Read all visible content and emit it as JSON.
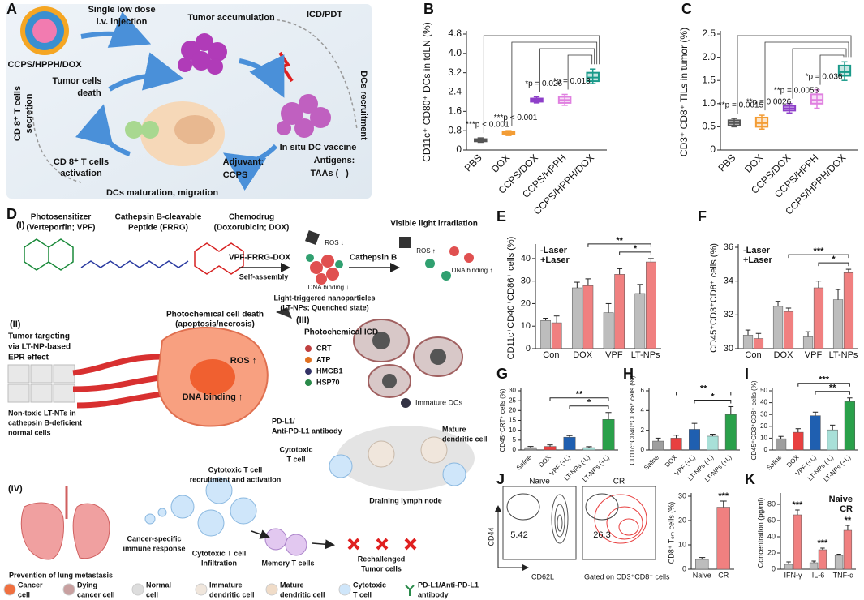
{
  "panel_a": {
    "label": "A",
    "texts": [
      "Single low dose",
      "i.v. injection",
      "Tumor accumulation",
      "ICD/PDT",
      "CCPS/HPPH/DOX",
      "Tumor cells",
      "death",
      "DCs recruitment",
      "CD 8⁺ T cells",
      "secretion",
      "In situ DC vaccine",
      "Antigens:",
      "TAAs (",
      ")",
      "Adjuvant:",
      "CCPS",
      "DCs maturation, migration",
      "CD 8⁺ T cells",
      "activation"
    ]
  },
  "panel_d": {
    "label": "D",
    "texts": [
      "(I)",
      "Photosensitizer",
      "(Verteporfin; VPF)",
      "Cathepsin B-cleavable",
      "Peptide (FRRG)",
      "Chemodrug",
      "(Doxorubicin; DOX)",
      "VPF-FRRG-DOX",
      "Self-assembly",
      "Light-triggered nanoparticles",
      "(LT-NPs; Quenched state)",
      "Cathepsin B",
      "Visible light irradiation",
      "ROS ↓",
      "DNA binding ↓",
      "ROS ↑",
      "DNA binding ↑",
      "(II)",
      "Tumor targeting",
      "via LT-NP-based",
      "EPR effect",
      "Non-toxic LT-NTs in",
      "cathepsin B-deficient",
      "normal cells",
      "Photochemical cell death",
      "(apoptosis/necrosis)",
      "ROS ↑",
      "DNA binding ↑",
      "(III)",
      "Photochemical ICD",
      "CRT",
      "ATP",
      "HMGB1",
      "HSP70",
      "Immature DCs",
      "PD-L1/",
      "Anti-PD-L1 antibody",
      "Cytotoxic",
      "T cell",
      "Mature",
      "dendritic cell",
      "(IV)",
      "Cytotoxic T cell",
      "recruitment and activation",
      "Draining lymph node",
      "Cancer-specific",
      "immune response",
      "Cytotoxic T cell",
      "Infiltration",
      "Memory T cells",
      "Rechallenged",
      "Tumor cells",
      "Prevention of lung metastasis",
      "Cancer",
      "cell",
      "Dying",
      "cancer cell",
      "Normal",
      "cell",
      "Immature",
      "dendritic cell",
      "Mature",
      "dendritic cell",
      "Cytotoxic",
      "T cell",
      "PD-L1/Anti-PD-L1",
      "antibody"
    ]
  },
  "flow_j": {
    "panels": [
      {
        "title": "Naive",
        "value": 5.42
      },
      {
        "title": "CR",
        "value": 26.3
      }
    ],
    "y_label": "CD44",
    "x_label": "CD62L",
    "caption": "Gated on CD3⁺CD8⁺ cells"
  },
  "chart_data": [
    {
      "type": "box",
      "label": "B",
      "ylabel": "CD11c⁺ CD80⁺ DCs in tdLN (%)",
      "categories": [
        "PBS",
        "DOX",
        "CCPS/DOX",
        "CCPS/HPPH",
        "CCPS/HPPH/DOX"
      ],
      "colors": [
        "#555555",
        "#f39c34",
        "#8e3fc9",
        "#e080e0",
        "#1a9a8a"
      ],
      "boxes": [
        {
          "min": 0.32,
          "q1": 0.36,
          "median": 0.4,
          "q3": 0.45,
          "max": 0.5
        },
        {
          "min": 0.6,
          "q1": 0.65,
          "median": 0.7,
          "q3": 0.76,
          "max": 0.8
        },
        {
          "min": 1.95,
          "q1": 2.0,
          "median": 2.07,
          "q3": 2.13,
          "max": 2.2
        },
        {
          "min": 1.85,
          "q1": 1.95,
          "median": 2.07,
          "q3": 2.2,
          "max": 2.3
        },
        {
          "min": 2.75,
          "q1": 2.85,
          "median": 3.0,
          "q3": 3.2,
          "max": 3.35
        }
      ],
      "ylim": [
        0,
        4.8
      ],
      "yticks": [
        0,
        0.8,
        1.6,
        2.4,
        3.2,
        {
          "value": 4,
          "label": "4.0"
        },
        4.8
      ],
      "annotations": [
        "***p < 0.001",
        "***p < 0.001",
        "*p = 0.026",
        "*p = 0.013"
      ]
    },
    {
      "type": "box",
      "label": "C",
      "ylabel": "CD3⁺ CD8⁺ TILs in tumor (%)",
      "categories": [
        "PBS",
        "DOX",
        "CCPS/DOX",
        "CCPS/HPPH",
        "CCPS/HPPH/DOX"
      ],
      "colors": [
        "#555555",
        "#f39c34",
        "#8e3fc9",
        "#e080e0",
        "#1a9a8a"
      ],
      "boxes": [
        {
          "min": 0.5,
          "q1": 0.53,
          "median": 0.58,
          "q3": 0.64,
          "max": 0.68
        },
        {
          "min": 0.45,
          "q1": 0.5,
          "median": 0.58,
          "q3": 0.7,
          "max": 0.75
        },
        {
          "min": 0.8,
          "q1": 0.85,
          "median": 0.9,
          "q3": 0.95,
          "max": 1.0
        },
        {
          "min": 0.9,
          "q1": 1.0,
          "median": 1.08,
          "q3": 1.2,
          "max": 1.3
        },
        {
          "min": 1.5,
          "q1": 1.6,
          "median": 1.68,
          "q3": 1.82,
          "max": 1.9
        }
      ],
      "ylim": [
        0,
        2.5
      ],
      "yticks": [
        0,
        0.5,
        {
          "value": 1,
          "label": "1.0"
        },
        1.5,
        {
          "value": 2,
          "label": "2.0"
        },
        2.5
      ],
      "annotations": [
        "**p = 0.0015",
        "**p = 0.0026",
        "**p = 0.0053",
        "*p = 0.036"
      ]
    },
    {
      "type": "bar",
      "label": "E",
      "ylabel": "CD11c⁺CD40⁺CD86⁺ cells (%)",
      "categories": [
        "Con",
        "DOX",
        "VPF",
        "LT-NPs"
      ],
      "series": [
        {
          "name": "-Laser",
          "color": "#bdbdbd",
          "values": [
            12.5,
            27,
            16,
            24.5
          ],
          "errors": [
            1,
            2.5,
            4,
            4
          ]
        },
        {
          "name": "+Laser",
          "color": "#f08080",
          "values": [
            11.5,
            28,
            33,
            38.5
          ],
          "errors": [
            3,
            3,
            2.5,
            1.5
          ]
        }
      ],
      "ylim": [
        0,
        45
      ],
      "yticks": [
        0,
        10,
        20,
        30,
        40
      ],
      "annotations": [
        "**",
        "*"
      ]
    },
    {
      "type": "bar",
      "label": "F",
      "ylabel": "CD45⁺CD3⁺CD8⁺ cells (%)",
      "categories": [
        "Con",
        "DOX",
        "VPF",
        "LT-NPs"
      ],
      "series": [
        {
          "name": "-Laser",
          "color": "#bdbdbd",
          "values": [
            30.8,
            32.5,
            30.7,
            32.9
          ],
          "errors": [
            0.3,
            0.3,
            0.3,
            0.6
          ]
        },
        {
          "name": "+Laser",
          "color": "#f08080",
          "values": [
            30.6,
            32.2,
            33.6,
            34.5
          ],
          "errors": [
            0.3,
            0.2,
            0.4,
            0.2
          ]
        }
      ],
      "ylim": [
        30,
        36
      ],
      "yticks": [
        30,
        32,
        34,
        36
      ],
      "annotations": [
        "***",
        "*"
      ]
    },
    {
      "type": "bar",
      "label": "G",
      "ylabel": "CD45⁻CRT⁺ cells (%)",
      "categories": [
        "Saline",
        "DOX",
        "VPF (+L)",
        "LT-NPs (-L)",
        "LT-NPs (+L)"
      ],
      "colors": [
        "#9e9e9e",
        "#e84040",
        "#1f5fb0",
        "#a8e0d8",
        "#2aa04a"
      ],
      "values": [
        1.2,
        1.8,
        6.5,
        1.2,
        15.5
      ],
      "errors": [
        0.6,
        0.8,
        0.8,
        0.5,
        3.5
      ],
      "ylim": [
        0,
        30
      ],
      "yticks": [
        0,
        5,
        10,
        15,
        20,
        25,
        30
      ],
      "annotations": [
        "**",
        "*"
      ]
    },
    {
      "type": "bar",
      "label": "H",
      "ylabel": "CD11c⁺CD40⁺CD86⁺ cells (%)",
      "categories": [
        "Saline",
        "DOX",
        "VPF (+L)",
        "LT-NPs (-L)",
        "LT-NPs (+L)"
      ],
      "colors": [
        "#9e9e9e",
        "#e84040",
        "#1f5fb0",
        "#a8e0d8",
        "#2aa04a"
      ],
      "values": [
        0.9,
        1.2,
        2.1,
        1.4,
        3.6
      ],
      "errors": [
        0.3,
        0.3,
        0.6,
        0.2,
        0.8
      ],
      "ylim": [
        0,
        6
      ],
      "yticks": [
        0,
        2,
        4,
        6
      ],
      "annotations": [
        "**",
        "*"
      ]
    },
    {
      "type": "bar",
      "label": "I",
      "ylabel": "CD45⁺CD3⁺CD8⁺ cells (%)",
      "categories": [
        "Saline",
        "DOX",
        "VPF (+L)",
        "LT-NPs (-L)",
        "LT-NPs (+L)"
      ],
      "colors": [
        "#9e9e9e",
        "#e84040",
        "#1f5fb0",
        "#a8e0d8",
        "#2aa04a"
      ],
      "values": [
        9.5,
        15,
        29,
        17,
        41
      ],
      "errors": [
        2,
        3,
        3,
        4,
        3
      ],
      "ylim": [
        0,
        50
      ],
      "yticks": [
        0,
        10,
        20,
        30,
        40,
        50
      ],
      "annotations": [
        "***",
        "**"
      ]
    },
    {
      "type": "bar",
      "label": "J",
      "ylabel": "CD8⁺ Tₑₘ cells (%)",
      "categories": [
        "Naive",
        "CR"
      ],
      "colors": [
        "#bdbdbd",
        "#f08080"
      ],
      "values": [
        4,
        25.5
      ],
      "errors": [
        0.8,
        2.5
      ],
      "ylim": [
        0,
        30
      ],
      "yticks": [
        0,
        10,
        20,
        30
      ],
      "annotations": [
        "***"
      ]
    },
    {
      "type": "bar",
      "label": "K",
      "ylabel": "Concentration (pg/ml)",
      "categories": [
        "IFN-γ",
        "IL-6",
        "TNF-α"
      ],
      "series": [
        {
          "name": "Naive",
          "color": "#bdbdbd",
          "values": [
            6,
            8,
            17
          ],
          "errors": [
            3,
            2,
            1.5
          ]
        },
        {
          "name": "CR",
          "color": "#f08080",
          "values": [
            67,
            24,
            48
          ],
          "errors": [
            6,
            2,
            6
          ]
        }
      ],
      "ylim": [
        0,
        90
      ],
      "yticks": [
        0,
        20,
        40,
        60,
        80
      ],
      "annotations": [
        "***",
        "***",
        "**"
      ]
    }
  ]
}
